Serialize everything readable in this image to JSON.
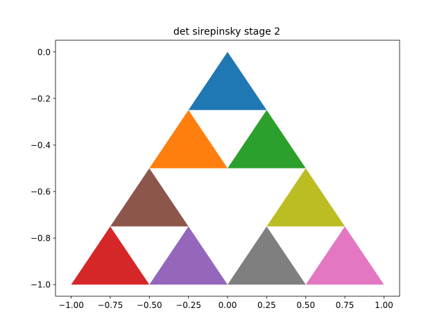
{
  "chart_data": {
    "type": "polygon",
    "title": "det sirepinsky stage 2",
    "xlabel": "",
    "ylabel": "",
    "xlim": [
      -1.1,
      1.1
    ],
    "ylim": [
      -1.05,
      0.05
    ],
    "xticks": [
      -1.0,
      -0.75,
      -0.5,
      -0.25,
      0.0,
      0.25,
      0.5,
      0.75,
      1.0
    ],
    "xtick_labels": [
      "−1.00",
      "−0.75",
      "−0.50",
      "−0.25",
      "0.00",
      "0.25",
      "0.50",
      "0.75",
      "1.00"
    ],
    "yticks": [
      0.0,
      -0.2,
      -0.4,
      -0.6,
      -0.8,
      -1.0
    ],
    "ytick_labels": [
      "0.0",
      "−0.2",
      "−0.4",
      "−0.6",
      "−0.8",
      "−1.0"
    ],
    "y_inverted": true,
    "grid": false,
    "triangles": [
      {
        "color": "#1f77b4",
        "points": [
          [
            0.0,
            0.0
          ],
          [
            -0.25,
            -0.25
          ],
          [
            0.25,
            -0.25
          ]
        ]
      },
      {
        "color": "#ff7f0e",
        "points": [
          [
            -0.25,
            -0.25
          ],
          [
            -0.5,
            -0.5
          ],
          [
            0.0,
            -0.5
          ]
        ]
      },
      {
        "color": "#2ca02c",
        "points": [
          [
            0.25,
            -0.25
          ],
          [
            0.0,
            -0.5
          ],
          [
            0.5,
            -0.5
          ]
        ]
      },
      {
        "color": "#d62728",
        "points": [
          [
            -0.75,
            -0.75
          ],
          [
            -1.0,
            -1.0
          ],
          [
            -0.5,
            -1.0
          ]
        ]
      },
      {
        "color": "#9467bd",
        "points": [
          [
            -0.25,
            -0.75
          ],
          [
            -0.5,
            -1.0
          ],
          [
            0.0,
            -1.0
          ]
        ]
      },
      {
        "color": "#8c564b",
        "points": [
          [
            -0.5,
            -0.5
          ],
          [
            -0.75,
            -0.75
          ],
          [
            -0.25,
            -0.75
          ]
        ]
      },
      {
        "color": "#e377c2",
        "points": [
          [
            0.75,
            -0.75
          ],
          [
            0.5,
            -1.0
          ],
          [
            1.0,
            -1.0
          ]
        ]
      },
      {
        "color": "#7f7f7f",
        "points": [
          [
            0.25,
            -0.75
          ],
          [
            0.0,
            -1.0
          ],
          [
            0.5,
            -1.0
          ]
        ]
      },
      {
        "color": "#bcbd22",
        "points": [
          [
            0.5,
            -0.5
          ],
          [
            0.25,
            -0.75
          ],
          [
            0.75,
            -0.75
          ]
        ]
      }
    ]
  }
}
